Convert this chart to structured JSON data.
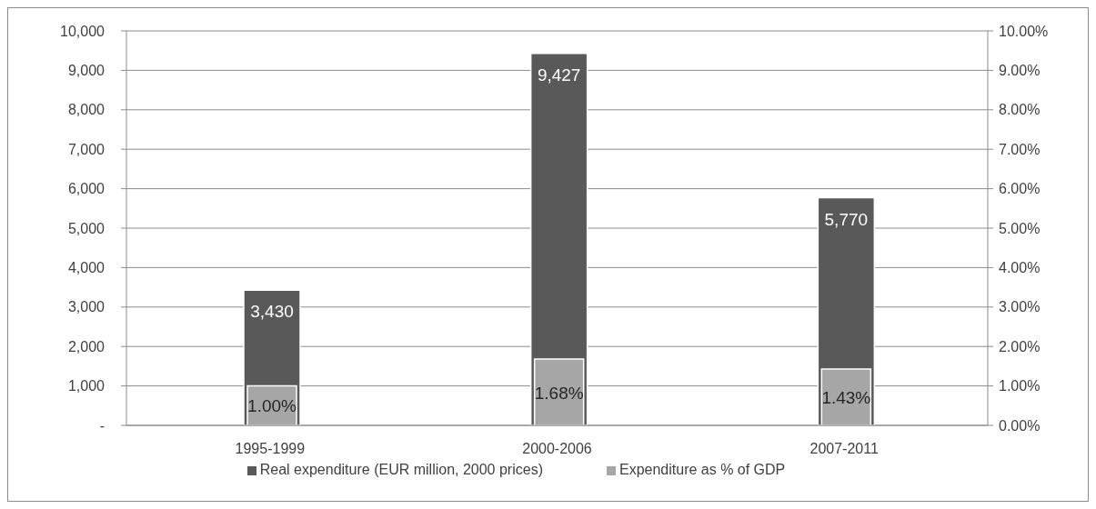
{
  "chart_data": {
    "type": "bar",
    "categories": [
      "1995-1999",
      "2000-2006",
      "2007-2011"
    ],
    "series": [
      {
        "name": "Real expenditure (EUR million, 2000 prices)",
        "color": "#595959",
        "values": [
          3430,
          9427,
          5770
        ],
        "value_labels": [
          "3,430",
          "9,427",
          "5,770"
        ]
      },
      {
        "name": "Expenditure as % of GDP",
        "color": "#a6a6a6",
        "axis": "y2",
        "values": [
          1.0,
          1.68,
          1.43
        ],
        "value_labels": [
          "1.00%",
          "1.68%",
          "1.43%"
        ]
      }
    ],
    "ylim": [
      0,
      10000
    ],
    "yticks": [
      {
        "value": 0,
        "label": "-"
      },
      {
        "value": 1000,
        "label": "1,000"
      },
      {
        "value": 2000,
        "label": "2,000"
      },
      {
        "value": 3000,
        "label": "3,000"
      },
      {
        "value": 4000,
        "label": "4,000"
      },
      {
        "value": 5000,
        "label": "5,000"
      },
      {
        "value": 6000,
        "label": "6,000"
      },
      {
        "value": 7000,
        "label": "7,000"
      },
      {
        "value": 8000,
        "label": "8,000"
      },
      {
        "value": 9000,
        "label": "9,000"
      },
      {
        "value": 10000,
        "label": "10,000"
      }
    ],
    "y2lim": [
      0,
      10
    ],
    "y2ticks": [
      {
        "value": 0,
        "label": "0.00%"
      },
      {
        "value": 1,
        "label": "1.00%"
      },
      {
        "value": 2,
        "label": "2.00%"
      },
      {
        "value": 3,
        "label": "3.00%"
      },
      {
        "value": 4,
        "label": "4.00%"
      },
      {
        "value": 5,
        "label": "5.00%"
      },
      {
        "value": 6,
        "label": "6.00%"
      },
      {
        "value": 7,
        "label": "7.00%"
      },
      {
        "value": 8,
        "label": "8.00%"
      },
      {
        "value": 9,
        "label": "9.00%"
      },
      {
        "value": 10,
        "label": "10.00%"
      }
    ],
    "grid": "y",
    "legend": "bottom"
  }
}
